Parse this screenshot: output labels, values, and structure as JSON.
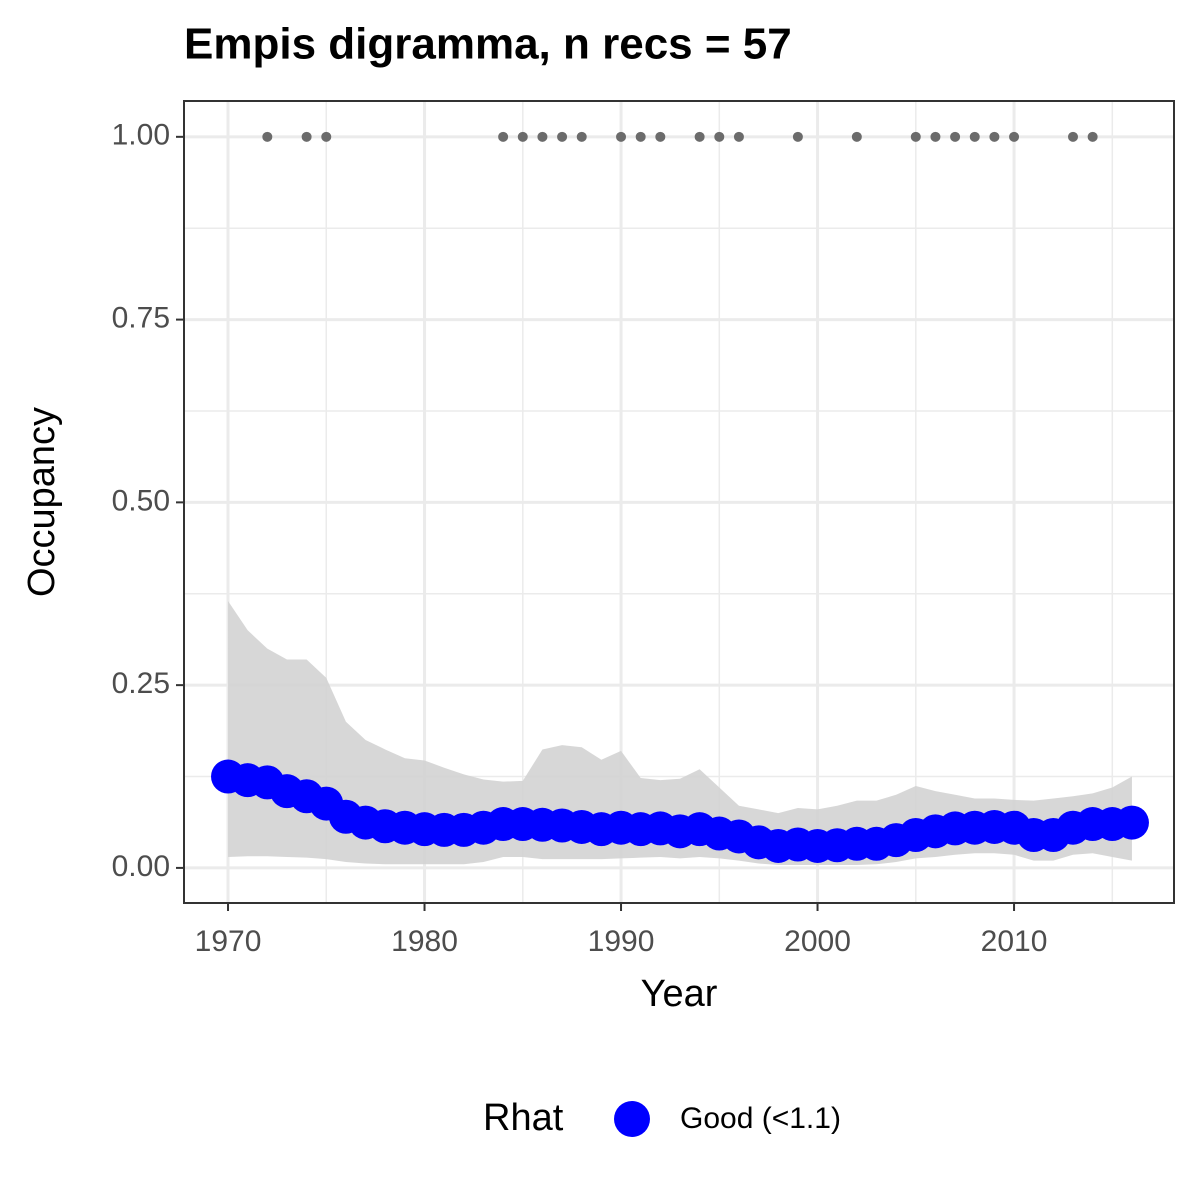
{
  "chart_data": {
    "type": "line",
    "title": "Empis digramma, n recs = 57",
    "xlabel": "Year",
    "ylabel": "Occupancy",
    "x": [
      1970,
      1971,
      1972,
      1973,
      1974,
      1975,
      1976,
      1977,
      1978,
      1979,
      1980,
      1981,
      1982,
      1983,
      1984,
      1985,
      1986,
      1987,
      1988,
      1989,
      1990,
      1991,
      1992,
      1993,
      1994,
      1995,
      1996,
      1997,
      1998,
      1999,
      2000,
      2001,
      2002,
      2003,
      2004,
      2005,
      2006,
      2007,
      2008,
      2009,
      2010,
      2011,
      2012,
      2013,
      2014,
      2015,
      2016
    ],
    "series": [
      {
        "name": "Good (<1.1)",
        "color": "#0000ff",
        "values": [
          0.125,
          0.12,
          0.117,
          0.105,
          0.098,
          0.088,
          0.07,
          0.062,
          0.057,
          0.055,
          0.053,
          0.052,
          0.052,
          0.055,
          0.06,
          0.06,
          0.059,
          0.058,
          0.056,
          0.053,
          0.055,
          0.053,
          0.054,
          0.05,
          0.053,
          0.047,
          0.043,
          0.035,
          0.03,
          0.032,
          0.03,
          0.031,
          0.033,
          0.033,
          0.038,
          0.045,
          0.05,
          0.054,
          0.055,
          0.056,
          0.055,
          0.045,
          0.045,
          0.055,
          0.06,
          0.06,
          0.062
        ]
      }
    ],
    "interval": {
      "color": "#d3d3d3",
      "upper": [
        0.365,
        0.325,
        0.3,
        0.285,
        0.285,
        0.26,
        0.2,
        0.175,
        0.162,
        0.15,
        0.147,
        0.137,
        0.128,
        0.121,
        0.118,
        0.119,
        0.162,
        0.168,
        0.165,
        0.148,
        0.16,
        0.123,
        0.12,
        0.122,
        0.135,
        0.11,
        0.085,
        0.08,
        0.075,
        0.082,
        0.08,
        0.085,
        0.092,
        0.092,
        0.1,
        0.112,
        0.105,
        0.1,
        0.095,
        0.095,
        0.093,
        0.092,
        0.095,
        0.098,
        0.102,
        0.11,
        0.125
      ],
      "lower": [
        0.015,
        0.016,
        0.016,
        0.015,
        0.014,
        0.012,
        0.008,
        0.006,
        0.005,
        0.005,
        0.005,
        0.005,
        0.005,
        0.008,
        0.015,
        0.015,
        0.012,
        0.012,
        0.012,
        0.012,
        0.013,
        0.014,
        0.015,
        0.013,
        0.015,
        0.013,
        0.01,
        0.006,
        0.004,
        0.004,
        0.004,
        0.004,
        0.004,
        0.005,
        0.008,
        0.013,
        0.015,
        0.018,
        0.02,
        0.02,
        0.018,
        0.01,
        0.01,
        0.018,
        0.02,
        0.015,
        0.01
      ]
    },
    "records": {
      "color": "#6b6b6b",
      "x": [
        1972,
        1974,
        1975,
        1984,
        1985,
        1986,
        1987,
        1988,
        1990,
        1991,
        1992,
        1994,
        1995,
        1996,
        1999,
        2002,
        2005,
        2006,
        2007,
        2008,
        2009,
        2010,
        2013,
        2014
      ],
      "values": [
        1,
        1,
        1,
        1,
        1,
        1,
        1,
        1,
        1,
        1,
        1,
        1,
        1,
        1,
        1,
        1,
        1,
        1,
        1,
        1,
        1,
        1,
        1,
        1
      ]
    },
    "legend_title": "Rhat",
    "legend": "bottom",
    "grid": true,
    "xlim": [
      1967.76,
      2018.14
    ],
    "ylim": [
      -0.048,
      1.049
    ],
    "xticks": [
      1970,
      1980,
      1990,
      2000,
      2010
    ],
    "yticks": [
      {
        "value": 0,
        "label": "0.00"
      },
      {
        "value": 0.25,
        "label": "0.25"
      },
      {
        "value": 0.5,
        "label": "0.50"
      },
      {
        "value": 0.75,
        "label": "0.75"
      },
      {
        "value": 1,
        "label": "1.00"
      }
    ]
  }
}
